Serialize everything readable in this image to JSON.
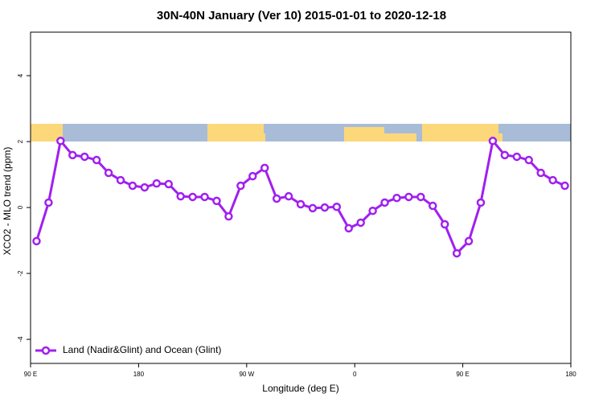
{
  "chart_data": {
    "type": "line",
    "title": "30N-40N January (Ver 10)   2015-01-01 to 2020-12-18",
    "x_label": "Longitude (deg E)",
    "y_label": "XCO2 - MLO trend (ppm)",
    "x": [
      95,
      105,
      115,
      125,
      135,
      145,
      155,
      165,
      175,
      185,
      195,
      205,
      215,
      225,
      235,
      245,
      255,
      265,
      275,
      285,
      295,
      305,
      315,
      325,
      335,
      345,
      355,
      365,
      375,
      385,
      395,
      405,
      415,
      425,
      435,
      445,
      455,
      465,
      475,
      485,
      495,
      505,
      515,
      525,
      535
    ],
    "series": [
      {
        "name": "Land (Nadir&Glint) and Ocean (Glint)",
        "color": "#a020f0",
        "values": [
          -1.02,
          0.15,
          2.02,
          1.59,
          1.54,
          1.44,
          1.05,
          0.83,
          0.66,
          0.61,
          0.73,
          0.71,
          0.34,
          0.32,
          0.32,
          0.2,
          -0.27,
          0.66,
          0.95,
          1.2,
          0.27,
          0.34,
          0.1,
          -0.02,
          0,
          0.02,
          -0.63,
          -0.46,
          -0.1,
          0.15,
          0.29,
          0.32,
          0.32,
          0.05,
          -0.51,
          -1.39,
          -1.02,
          0.15,
          2.02,
          1.59,
          1.54,
          1.44,
          1.05,
          0.83,
          0.66
        ]
      }
    ],
    "xlim": [
      90,
      540
    ],
    "xticks": [
      {
        "value": 90,
        "label": "90 E"
      },
      180,
      {
        "value": 270,
        "label": "90 W"
      },
      {
        "value": 360,
        "label": "0"
      },
      {
        "value": 450,
        "label": "90 E"
      },
      {
        "value": 540,
        "label": "180"
      }
    ],
    "ylim": [
      -4.73,
      5.32
    ],
    "yticks": [
      -4,
      -2,
      0,
      2,
      4
    ],
    "legend": "bottom-left"
  }
}
